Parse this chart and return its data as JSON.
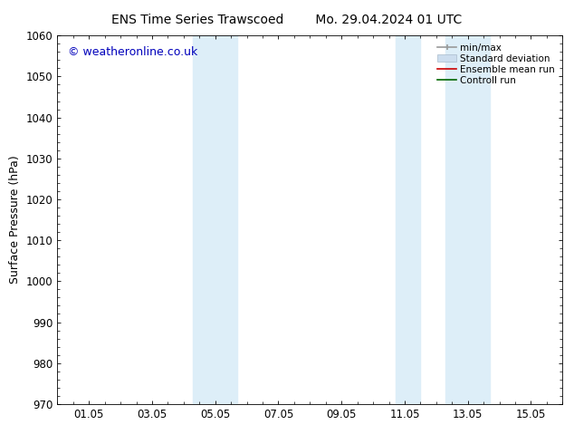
{
  "title_left": "ENS Time Series Trawscoed",
  "title_right": "Mo. 29.04.2024 01 UTC",
  "ylabel": "Surface Pressure (hPa)",
  "xlabel": "",
  "ylim": [
    970,
    1060
  ],
  "yticks": [
    970,
    980,
    990,
    1000,
    1010,
    1020,
    1030,
    1040,
    1050,
    1060
  ],
  "xlim": [
    0.0,
    16.0
  ],
  "xtick_labels": [
    "01.05",
    "03.05",
    "05.05",
    "07.05",
    "09.05",
    "11.05",
    "13.05",
    "15.05"
  ],
  "xtick_positions": [
    1.0,
    3.0,
    5.0,
    7.0,
    9.0,
    11.0,
    13.0,
    15.0
  ],
  "shaded_bands": [
    {
      "x_start": 4.3,
      "x_end": 5.0,
      "color": "#ddeef8"
    },
    {
      "x_start": 5.0,
      "x_end": 5.7,
      "color": "#ddeef8"
    },
    {
      "x_start": 10.7,
      "x_end": 11.5,
      "color": "#ddeef8"
    },
    {
      "x_start": 12.3,
      "x_end": 13.7,
      "color": "#ddeef8"
    }
  ],
  "watermark": "© weatheronline.co.uk",
  "watermark_color": "#0000bb",
  "background_color": "#ffffff",
  "legend_items": [
    {
      "label": "min/max",
      "color": "#999999",
      "type": "errorbar"
    },
    {
      "label": "Standard deviation",
      "color": "#ccddee",
      "type": "fill"
    },
    {
      "label": "Ensemble mean run",
      "color": "#cc0000",
      "type": "line"
    },
    {
      "label": "Controll run",
      "color": "#006600",
      "type": "line"
    }
  ],
  "title_fontsize": 10,
  "axis_label_fontsize": 9,
  "tick_fontsize": 8.5,
  "watermark_fontsize": 9,
  "legend_fontsize": 7.5
}
